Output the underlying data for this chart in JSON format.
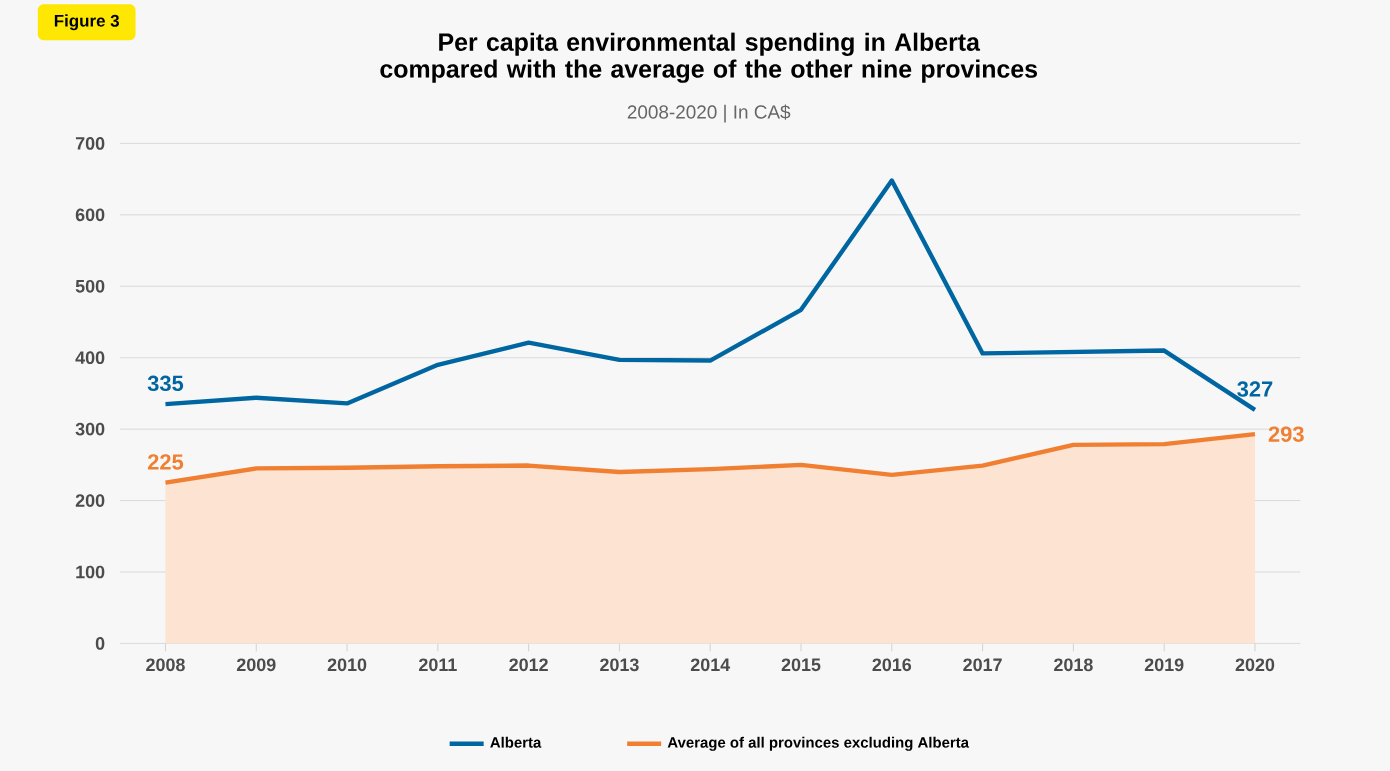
{
  "chart_data": {
    "type": "line",
    "title": "Per capita environmental spending in Alberta compared with the average of the other nine provinces",
    "subtitle": "2008-2020    |    In CA$",
    "annotations": [
      "Figure 3"
    ],
    "categories": [
      "2008",
      "2009",
      "2010",
      "2011",
      "2012",
      "2013",
      "2014",
      "2015",
      "2016",
      "2017",
      "2018",
      "2019",
      "2020"
    ],
    "series": [
      {
        "name": "Alberta",
        "color": "#0066a1",
        "values": [
          335,
          344,
          336,
          390,
          421,
          397,
          396,
          467,
          648,
          406,
          408,
          410,
          327
        ],
        "value_labels": [
          "335",
          null,
          null,
          null,
          null,
          null,
          null,
          null,
          null,
          null,
          null,
          null,
          "327"
        ]
      },
      {
        "name": "Average of all provinces excluding Alberta",
        "type": "area",
        "color": "#f07f32",
        "values": [
          225,
          245,
          246,
          248,
          249,
          240,
          244,
          250,
          236,
          249,
          278,
          279,
          293
        ],
        "value_labels": [
          "225",
          null,
          null,
          null,
          null,
          null,
          null,
          null,
          null,
          null,
          null,
          null,
          "293"
        ]
      }
    ],
    "ylim": [
      0,
      700
    ],
    "yticks": [
      0,
      100,
      200,
      300,
      400,
      500,
      600,
      700
    ],
    "grid": "y",
    "legend": "bottom"
  }
}
